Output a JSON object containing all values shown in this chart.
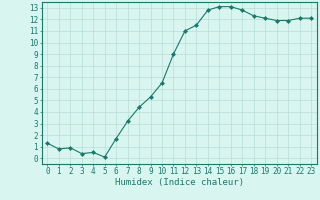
{
  "x": [
    0,
    1,
    2,
    3,
    4,
    5,
    6,
    7,
    8,
    9,
    10,
    11,
    12,
    13,
    14,
    15,
    16,
    17,
    18,
    19,
    20,
    21,
    22,
    23
  ],
  "y": [
    1.3,
    0.8,
    0.9,
    0.4,
    0.5,
    0.1,
    1.7,
    3.2,
    4.4,
    5.3,
    6.5,
    9.0,
    11.0,
    11.5,
    12.8,
    13.1,
    13.1,
    12.8,
    12.3,
    12.1,
    11.9,
    11.9,
    12.1,
    12.1
  ],
  "xlabel": "Humidex (Indice chaleur)",
  "ylim": [
    -0.5,
    13.5
  ],
  "xlim": [
    -0.5,
    23.5
  ],
  "yticks": [
    0,
    1,
    2,
    3,
    4,
    5,
    6,
    7,
    8,
    9,
    10,
    11,
    12,
    13
  ],
  "xticks": [
    0,
    1,
    2,
    3,
    4,
    5,
    6,
    7,
    8,
    9,
    10,
    11,
    12,
    13,
    14,
    15,
    16,
    17,
    18,
    19,
    20,
    21,
    22,
    23
  ],
  "line_color": "#1a7a6a",
  "marker_color": "#1a7a6a",
  "bg_color": "#d8f5f0",
  "grid_color": "#b8ddd8",
  "tick_label_color": "#1a7a6a",
  "xlabel_color": "#1a7a6a",
  "axis_color": "#1a7a6a",
  "tick_fontsize": 5.5,
  "xlabel_fontsize": 6.5
}
